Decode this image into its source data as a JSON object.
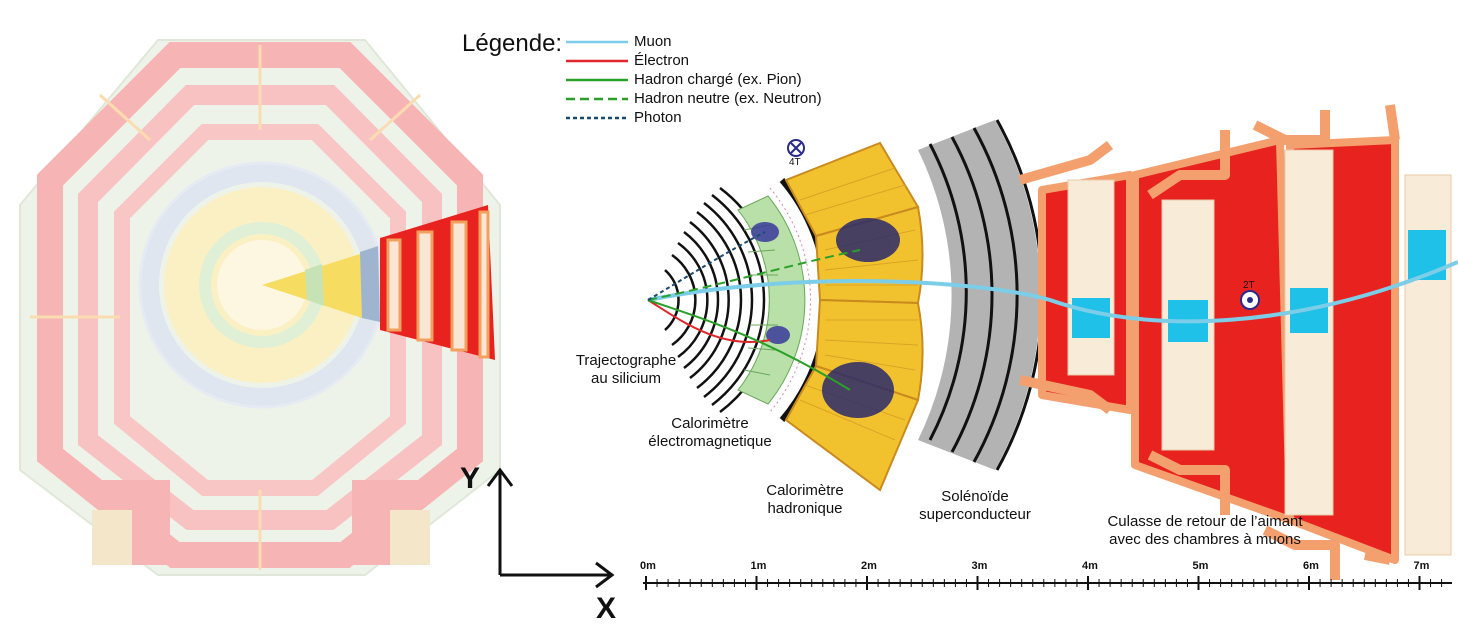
{
  "legend": {
    "title": "Légende:",
    "items": [
      {
        "label": "Muon",
        "color": "#7ccde8",
        "style": "solid"
      },
      {
        "label": "Électron",
        "color": "#e0262a",
        "style": "solid"
      },
      {
        "label": "Hadron chargé (ex. Pion)",
        "color": "#2aa02a",
        "style": "solid"
      },
      {
        "label": "Hadron neutre (ex. Neutron)",
        "color": "#2aa02a",
        "style": "dashed"
      },
      {
        "label": "Photon",
        "color": "#1a4a6e",
        "style": "dotted"
      }
    ]
  },
  "labels": {
    "tracker_line1": "Trajectographe",
    "tracker_line2": "au silicium",
    "ecal_line1": "Calorimètre",
    "ecal_line2": "électromagnetique",
    "hcal_line1": "Calorimètre",
    "hcal_line2": "hadronique",
    "solenoid_line1": "Solénoïde",
    "solenoid_line2": "superconducteur",
    "yoke_line1": "Culasse de retour de l’aimant",
    "yoke_line2": "avec des chambres à muons"
  },
  "fields": {
    "inner": "4T",
    "outer": "2T"
  },
  "axes": {
    "y": "Y",
    "x": "X"
  },
  "scale": {
    "ticks": [
      "0m",
      "1m",
      "2m",
      "3m",
      "4m",
      "5m",
      "6m",
      "7m"
    ]
  },
  "colors": {
    "yoke_red": "#e8221e",
    "yoke_outline": "#f4a06e",
    "calorimeter_yellow": "#f2c22e",
    "ecal_green": "#b8e0a8",
    "solenoid_gray": "#b3b3b3",
    "muon_chamber_cyan": "#1fc1e8",
    "pale_pink": "#f7b4b4",
    "pale_yellow": "#fbf0c4"
  }
}
